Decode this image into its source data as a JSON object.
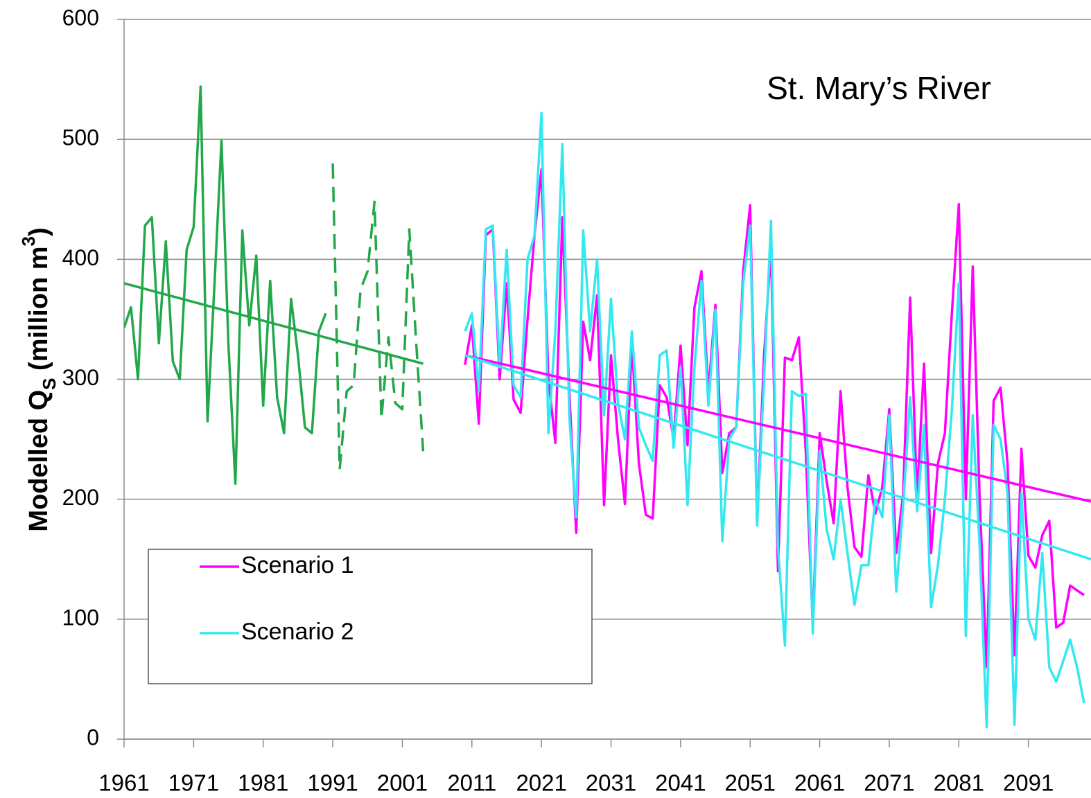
{
  "chart_data": {
    "type": "line",
    "annotation": "St. Mary’s River",
    "y_label": [
      "Modelled Q",
      "S",
      " (million m",
      "3",
      ")"
    ],
    "xlim": [
      1961,
      2100
    ],
    "xticks": [
      1961,
      1971,
      1981,
      1991,
      2001,
      2011,
      2021,
      2031,
      2041,
      2051,
      2061,
      2071,
      2081,
      2091
    ],
    "ylim": [
      0,
      600
    ],
    "yticks": [
      0,
      100,
      200,
      300,
      400,
      500,
      600
    ],
    "grid": true,
    "legend": "lower left",
    "series": [
      {
        "color": "#22a84a",
        "x": [
          1961,
          1962,
          1963,
          1964,
          1965,
          1966,
          1967,
          1968,
          1969,
          1970,
          1971,
          1972,
          1973,
          1974,
          1975,
          1976,
          1977,
          1978,
          1979,
          1980,
          1981,
          1982,
          1983,
          1984,
          1985,
          1986,
          1987,
          1988,
          1989,
          1990
        ],
        "values": [
          343,
          360,
          300,
          428,
          435,
          330,
          415,
          315,
          300,
          408,
          427,
          544,
          265,
          380,
          499,
          330,
          213,
          424,
          345,
          403,
          278,
          382,
          285,
          255,
          367,
          320,
          260,
          255,
          340,
          355
        ]
      },
      {
        "color": "#22a84a",
        "dashed": true,
        "x": [
          1991,
          1992,
          1993,
          1994,
          1995,
          1996,
          1997,
          1998,
          1999,
          2000,
          2001,
          2002,
          2003,
          2004
        ],
        "values": [
          480,
          225,
          290,
          295,
          375,
          390,
          448,
          267,
          335,
          280,
          275,
          425,
          330,
          240
        ]
      },
      {
        "color": "#22a84a",
        "x": [
          1961,
          2004
        ],
        "values": [
          380,
          313
        ]
      },
      {
        "name": "Scenario 1",
        "color": "#ff00ff",
        "x": [
          2010,
          2011,
          2012,
          2013,
          2014,
          2015,
          2016,
          2017,
          2018,
          2019,
          2020,
          2021,
          2022,
          2023,
          2024,
          2025,
          2026,
          2027,
          2028,
          2029,
          2030,
          2031,
          2032,
          2033,
          2034,
          2035,
          2036,
          2037,
          2038,
          2039,
          2040,
          2041,
          2042,
          2043,
          2044,
          2045,
          2046,
          2047,
          2048,
          2049,
          2050,
          2051,
          2052,
          2053,
          2054,
          2055,
          2056,
          2057,
          2058,
          2059,
          2060,
          2061,
          2062,
          2063,
          2064,
          2065,
          2066,
          2067,
          2068,
          2069,
          2070,
          2071,
          2072,
          2073,
          2074,
          2075,
          2076,
          2077,
          2078,
          2079,
          2080,
          2081,
          2082,
          2083,
          2084,
          2085,
          2086,
          2087,
          2088,
          2089,
          2090,
          2091,
          2092,
          2093,
          2094,
          2095,
          2096,
          2097,
          2098,
          2099
        ],
        "values": [
          312,
          345,
          263,
          420,
          425,
          300,
          380,
          283,
          272,
          350,
          420,
          475,
          300,
          247,
          435,
          290,
          172,
          348,
          316,
          370,
          195,
          320,
          250,
          196,
          330,
          230,
          187,
          184,
          295,
          285,
          250,
          328,
          245,
          360,
          390,
          290,
          362,
          222,
          255,
          260,
          390,
          445,
          180,
          320,
          410,
          140,
          318,
          316,
          335,
          240,
          95,
          255,
          215,
          180,
          290,
          210,
          160,
          152,
          220,
          188,
          210,
          275,
          155,
          205,
          368,
          200,
          313,
          155,
          230,
          255,
          355,
          446,
          200,
          394,
          200,
          60,
          282,
          293,
          230,
          70,
          242,
          153,
          143,
          170,
          182,
          93,
          97,
          128,
          124,
          120
        ]
      },
      {
        "name": "Scenario 2",
        "color": "#33e8f0",
        "x": [
          2010,
          2011,
          2012,
          2013,
          2014,
          2015,
          2016,
          2017,
          2018,
          2019,
          2020,
          2021,
          2022,
          2023,
          2024,
          2025,
          2026,
          2027,
          2028,
          2029,
          2030,
          2031,
          2032,
          2033,
          2034,
          2035,
          2036,
          2037,
          2038,
          2039,
          2040,
          2041,
          2042,
          2043,
          2044,
          2045,
          2046,
          2047,
          2048,
          2049,
          2050,
          2051,
          2052,
          2053,
          2054,
          2055,
          2056,
          2057,
          2058,
          2059,
          2060,
          2061,
          2062,
          2063,
          2064,
          2065,
          2066,
          2067,
          2068,
          2069,
          2070,
          2071,
          2072,
          2073,
          2074,
          2075,
          2076,
          2077,
          2078,
          2079,
          2080,
          2081,
          2082,
          2083,
          2084,
          2085,
          2086,
          2087,
          2088,
          2089,
          2090,
          2091,
          2092,
          2093,
          2094,
          2095,
          2096,
          2097,
          2098,
          2099
        ],
        "values": [
          340,
          355,
          290,
          425,
          428,
          310,
          408,
          295,
          285,
          400,
          420,
          522,
          255,
          340,
          496,
          270,
          185,
          424,
          340,
          400,
          270,
          367,
          280,
          250,
          340,
          260,
          245,
          232,
          320,
          324,
          243,
          310,
          195,
          310,
          382,
          278,
          358,
          165,
          250,
          260,
          380,
          428,
          178,
          300,
          432,
          160,
          78,
          290,
          286,
          288,
          88,
          240,
          175,
          150,
          200,
          155,
          112,
          145,
          145,
          200,
          185,
          270,
          123,
          195,
          285,
          190,
          262,
          110,
          145,
          200,
          275,
          380,
          86,
          270,
          160,
          10,
          262,
          250,
          205,
          12,
          205,
          100,
          83,
          155,
          60,
          48,
          65,
          83,
          60,
          30
        ]
      },
      {
        "color": "#ff00ff",
        "x": [
          2010,
          2100
        ],
        "values": [
          320,
          198
        ]
      },
      {
        "color": "#33e8f0",
        "x": [
          2010,
          2100
        ],
        "values": [
          320,
          150
        ]
      }
    ]
  }
}
